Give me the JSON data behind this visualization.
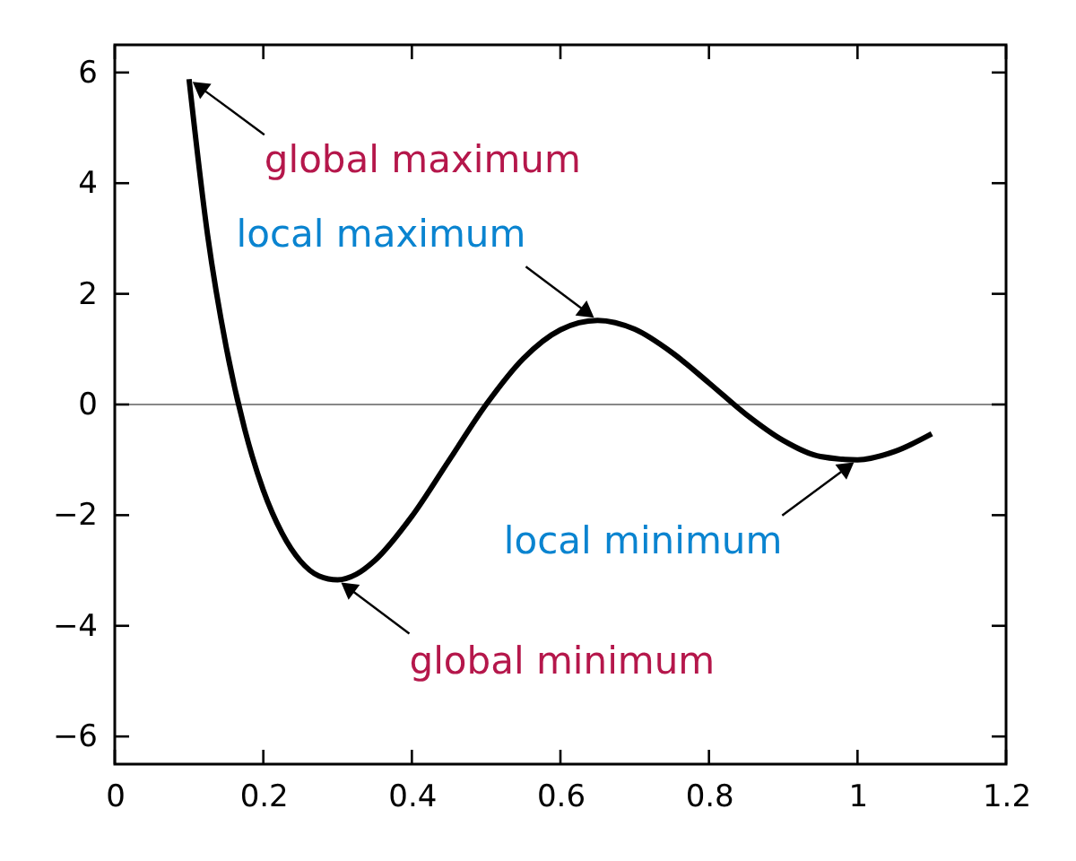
{
  "chart_data": {
    "type": "line",
    "x": [
      0.1,
      0.125,
      0.15,
      0.175,
      0.2,
      0.225,
      0.25,
      0.275,
      0.3,
      0.325,
      0.35,
      0.4,
      0.45,
      0.5,
      0.55,
      0.6,
      0.65,
      0.7,
      0.75,
      0.8,
      0.85,
      0.9,
      0.95,
      1.0,
      1.05,
      1.1
    ],
    "series": [
      {
        "color": "#000000",
        "values": [
          5.88,
          3.06,
          1.04,
          -0.45,
          -1.55,
          -2.32,
          -2.83,
          -3.1,
          -3.17,
          -3.07,
          -2.82,
          -2.02,
          -1.01,
          0,
          0.83,
          1.35,
          1.52,
          1.36,
          0.94,
          0.39,
          -0.18,
          -0.65,
          -0.94,
          -1.0,
          -0.85,
          -0.53
        ]
      }
    ],
    "xlim": [
      0,
      1.2
    ],
    "xticks": [
      0,
      0.2,
      0.4,
      0.6,
      0.8,
      1,
      1.2
    ],
    "ylim": [
      -6.5,
      6.5
    ],
    "yticks": [
      -6,
      -4,
      -2,
      0,
      2,
      4,
      6
    ],
    "ref_lines": [
      {
        "axis": "y",
        "value": 0,
        "color": "#888888"
      }
    ],
    "annotations": [
      {
        "text": "global maximum",
        "x": 0.1,
        "y": 5.88
      },
      {
        "text": "local maximum",
        "x": 0.65,
        "y": 1.52
      },
      {
        "text": "global minimum",
        "x": 0.3,
        "y": -3.17
      },
      {
        "text": "local minimum",
        "x": 1.0,
        "y": -1.0
      }
    ],
    "grid": false,
    "marker": "none",
    "line_style": "solid"
  }
}
